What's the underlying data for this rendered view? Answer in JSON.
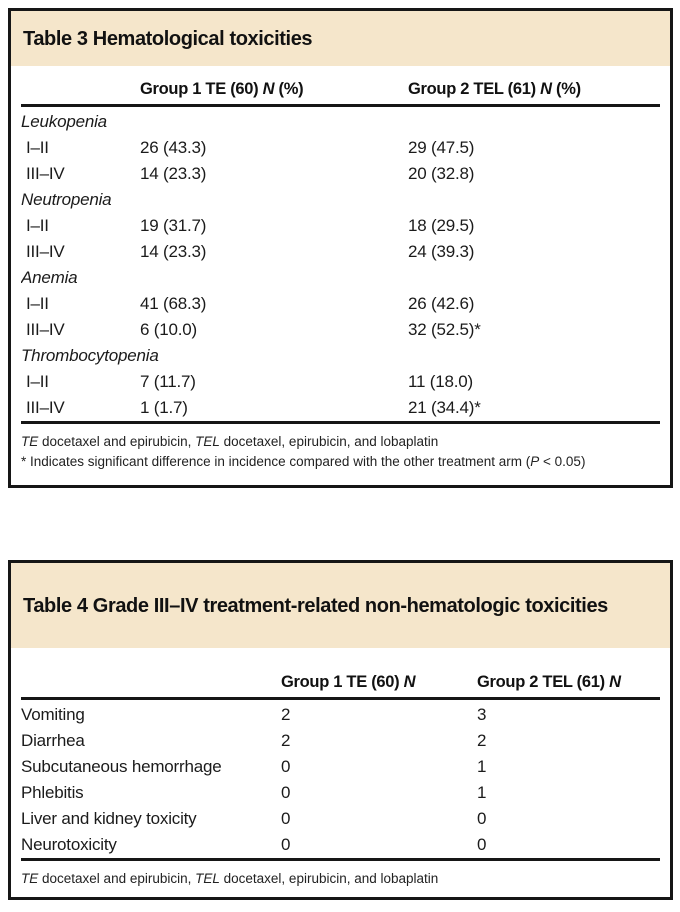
{
  "theme": {
    "band_color": "#f5e6cb",
    "border_color": "#161616",
    "text_color": "#1b1b1b"
  },
  "table3": {
    "title": "Table 3 Hematological toxicities",
    "columns": [
      {
        "prefix": "Group 1 TE (60) ",
        "n": "N",
        "suffix": " (%)"
      },
      {
        "prefix": "Group 2 TEL (61) ",
        "n": "N",
        "suffix": " (%)"
      }
    ],
    "rows": [
      {
        "type": "category",
        "label": "Leukopenia"
      },
      {
        "type": "data",
        "label": "I–II",
        "group1": "26 (43.3)",
        "group2": "29 (47.5)"
      },
      {
        "type": "data",
        "label": "III–IV",
        "group1": "14 (23.3)",
        "group2": "20 (32.8)"
      },
      {
        "type": "category",
        "label": "Neutropenia"
      },
      {
        "type": "data",
        "label": "I–II",
        "group1": "19 (31.7)",
        "group2": "18 (29.5)"
      },
      {
        "type": "data",
        "label": "III–IV",
        "group1": "14 (23.3)",
        "group2": "24 (39.3)"
      },
      {
        "type": "category",
        "label": "Anemia"
      },
      {
        "type": "data",
        "label": "I–II",
        "group1": "41 (68.3)",
        "group2": "26 (42.6)"
      },
      {
        "type": "data",
        "label": "III–IV",
        "group1": "6 (10.0)",
        "group2": "32 (52.5)*"
      },
      {
        "type": "category",
        "label": "Thrombocytopenia"
      },
      {
        "type": "data",
        "label": "I–II",
        "group1": "7 (11.7)",
        "group2": "11 (18.0)"
      },
      {
        "type": "data",
        "label": "III–IV",
        "group1": "1 (1.7)",
        "group2": "21 (34.4)*"
      }
    ],
    "footnotes": [
      [
        {
          "t": "TE",
          "i": true
        },
        {
          "t": " docetaxel and epirubicin, ",
          "i": false
        },
        {
          "t": "TEL",
          "i": true
        },
        {
          "t": " docetaxel, epirubicin, and lobaplatin",
          "i": false
        }
      ],
      [
        {
          "t": "* Indicates significant difference in incidence compared with the other treatment arm (",
          "i": false
        },
        {
          "t": "P",
          "i": true
        },
        {
          "t": " < 0.05)",
          "i": false
        }
      ]
    ]
  },
  "table4": {
    "title": "Table 4 Grade III–IV treatment-related non-hematologic toxicities",
    "columns": [
      {
        "prefix": "Group 1 TE (60) ",
        "n": "N",
        "suffix": ""
      },
      {
        "prefix": "Group 2 TEL (61) ",
        "n": "N",
        "suffix": ""
      }
    ],
    "rows": [
      {
        "type": "data",
        "label": "Vomiting",
        "group1": "2",
        "group2": "3"
      },
      {
        "type": "data",
        "label": "Diarrhea",
        "group1": "2",
        "group2": "2"
      },
      {
        "type": "data",
        "label": "Subcutaneous hemorrhage",
        "group1": "0",
        "group2": "1"
      },
      {
        "type": "data",
        "label": "Phlebitis",
        "group1": "0",
        "group2": "1"
      },
      {
        "type": "data",
        "label": "Liver and kidney toxicity",
        "group1": "0",
        "group2": "0"
      },
      {
        "type": "data",
        "label": "Neurotoxicity",
        "group1": "0",
        "group2": "0"
      }
    ],
    "footnotes": [
      [
        {
          "t": "TE",
          "i": true
        },
        {
          "t": " docetaxel and epirubicin, ",
          "i": false
        },
        {
          "t": "TEL",
          "i": true
        },
        {
          "t": " docetaxel, epirubicin, and lobaplatin",
          "i": false
        }
      ]
    ]
  }
}
